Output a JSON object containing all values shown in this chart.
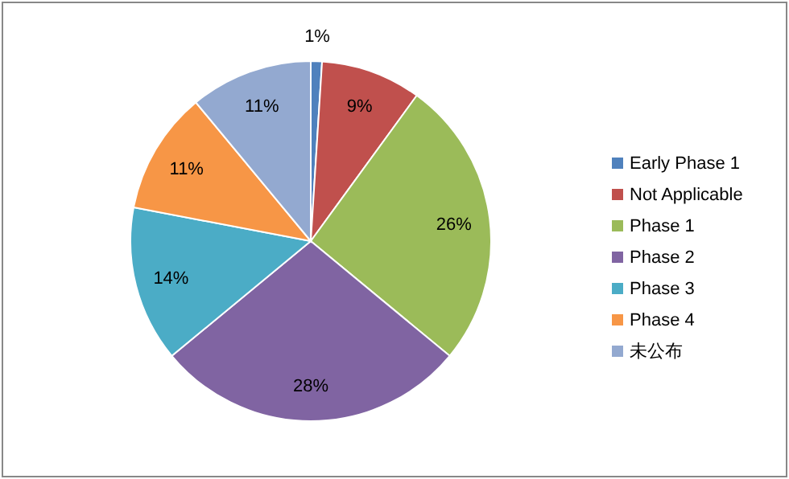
{
  "chart_data": {
    "type": "pie",
    "categories": [
      "Early Phase 1",
      "Not Applicable",
      "Phase 1",
      "Phase 2",
      "Phase 3",
      "Phase 4",
      "未公布"
    ],
    "values": [
      1,
      9,
      26,
      28,
      14,
      11,
      11
    ],
    "colors": [
      "#4f81bd",
      "#c0504d",
      "#9bbb59",
      "#8064a2",
      "#4bacc6",
      "#f79646",
      "#93a9d0"
    ],
    "value_labels": [
      "1%",
      "9%",
      "26%",
      "28%",
      "14%",
      "11%",
      "11%"
    ],
    "legend": "right"
  }
}
